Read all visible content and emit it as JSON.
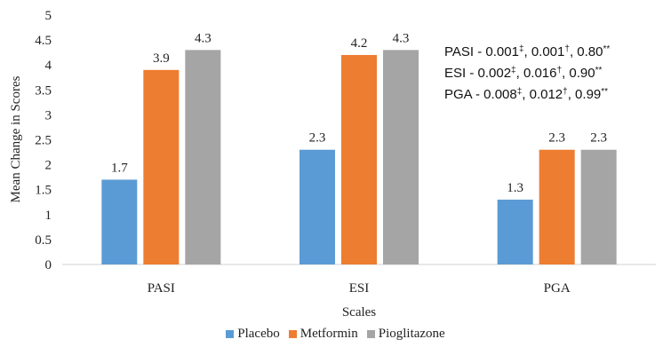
{
  "chart_data": {
    "type": "bar",
    "categories": [
      "PASI",
      "ESI",
      "PGA"
    ],
    "series": [
      {
        "name": "Placebo",
        "values": [
          1.7,
          2.3,
          1.3
        ],
        "color": "#5b9bd5"
      },
      {
        "name": "Metformin",
        "values": [
          3.9,
          4.2,
          2.3
        ],
        "color": "#ed7d31"
      },
      {
        "name": "Pioglitazone",
        "values": [
          4.3,
          4.3,
          2.3
        ],
        "color": "#a5a5a5"
      }
    ],
    "xlabel": "Scales",
    "ylabel": "Mean Change in Scores",
    "ylim": [
      0,
      5
    ],
    "yticks": [
      "0",
      "0.5",
      "1",
      "1.5",
      "2",
      "2.5",
      "3",
      "3.5",
      "4",
      "4.5",
      "5"
    ],
    "grid": false,
    "legend_position": "bottom",
    "annotations": [
      {
        "prefix": "PASI - 0.001",
        "s1": "‡",
        "mid1": ", 0.001",
        "s2": "†",
        "mid2": ", 0.80",
        "s3": "**"
      },
      {
        "prefix": "ESI - 0.002",
        "s1": "‡",
        "mid1": ", 0.016",
        "s2": "†",
        "mid2": ", 0.90",
        "s3": "**"
      },
      {
        "prefix": "PGA - 0.008",
        "s1": "‡",
        "mid1": ", 0.012",
        "s2": "†",
        "mid2": ", 0.99",
        "s3": "**"
      }
    ]
  }
}
